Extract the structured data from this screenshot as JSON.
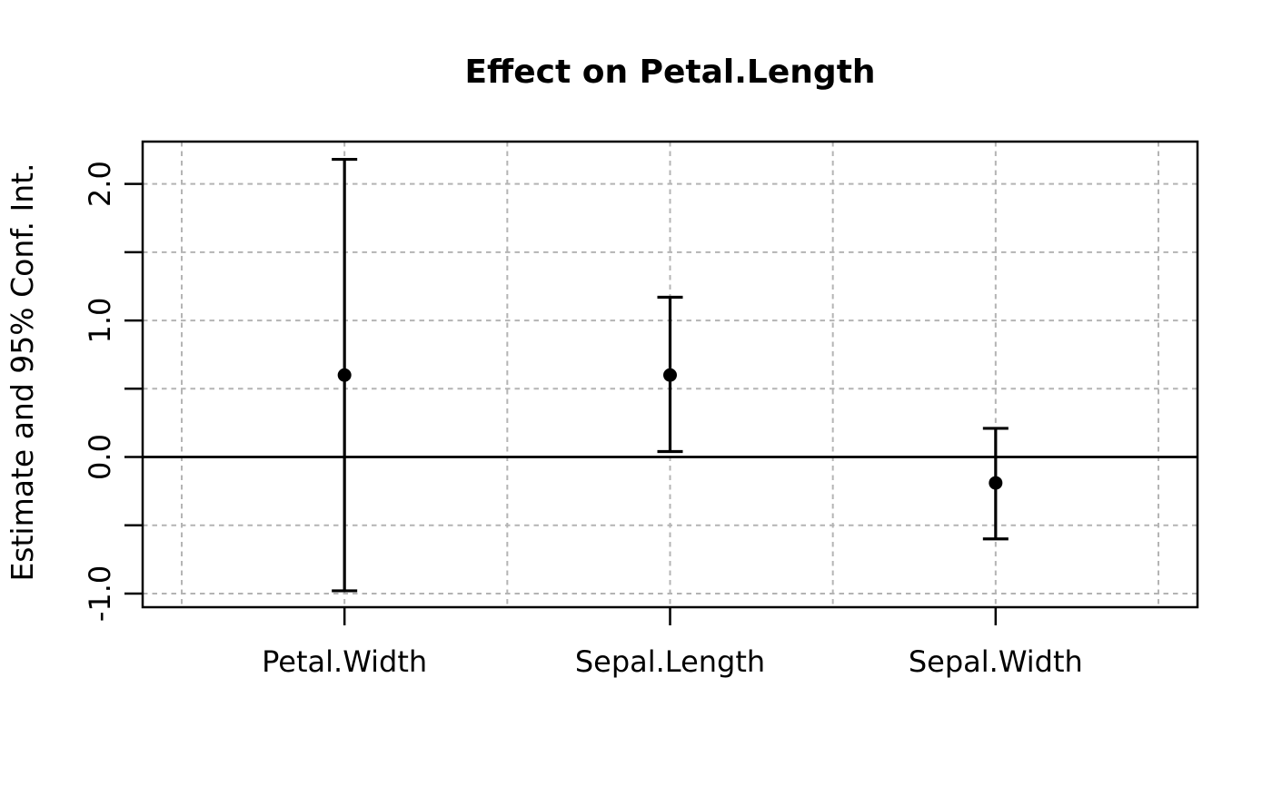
{
  "chart_data": {
    "type": "scatter",
    "subtype": "point-estimates-with-error-bars",
    "title": "Effect on Petal.Length",
    "xlabel": "",
    "ylabel": "Estimate and 95% Conf. Int.",
    "categories": [
      "Petal.Width",
      "Sepal.Length",
      "Sepal.Width"
    ],
    "x_positions": [
      1,
      2,
      3
    ],
    "series": [
      {
        "name": "Estimate",
        "values": [
          0.6,
          0.6,
          -0.19
        ]
      }
    ],
    "ci_lower": [
      -0.98,
      0.04,
      -0.6
    ],
    "ci_upper": [
      2.18,
      1.17,
      0.21
    ],
    "confidence_level": "95%",
    "xlim": [
      0.38,
      3.62
    ],
    "ylim": [
      -1.1,
      2.31
    ],
    "yticks": [
      -1.0,
      -0.5,
      0.0,
      0.5,
      1.0,
      1.5,
      2.0
    ],
    "ytick_labels": [
      "-1.0",
      "",
      "0.0",
      "",
      "1.0",
      "",
      "2.0"
    ],
    "x_gridlines": [
      0.5,
      1.0,
      1.5,
      2.0,
      2.5,
      3.0,
      3.5
    ],
    "reference_line_y": 0,
    "grid": true,
    "legend_position": "none",
    "colors": {
      "foreground": "#000000",
      "grid": "#b4b4b4",
      "background": "#ffffff"
    }
  }
}
